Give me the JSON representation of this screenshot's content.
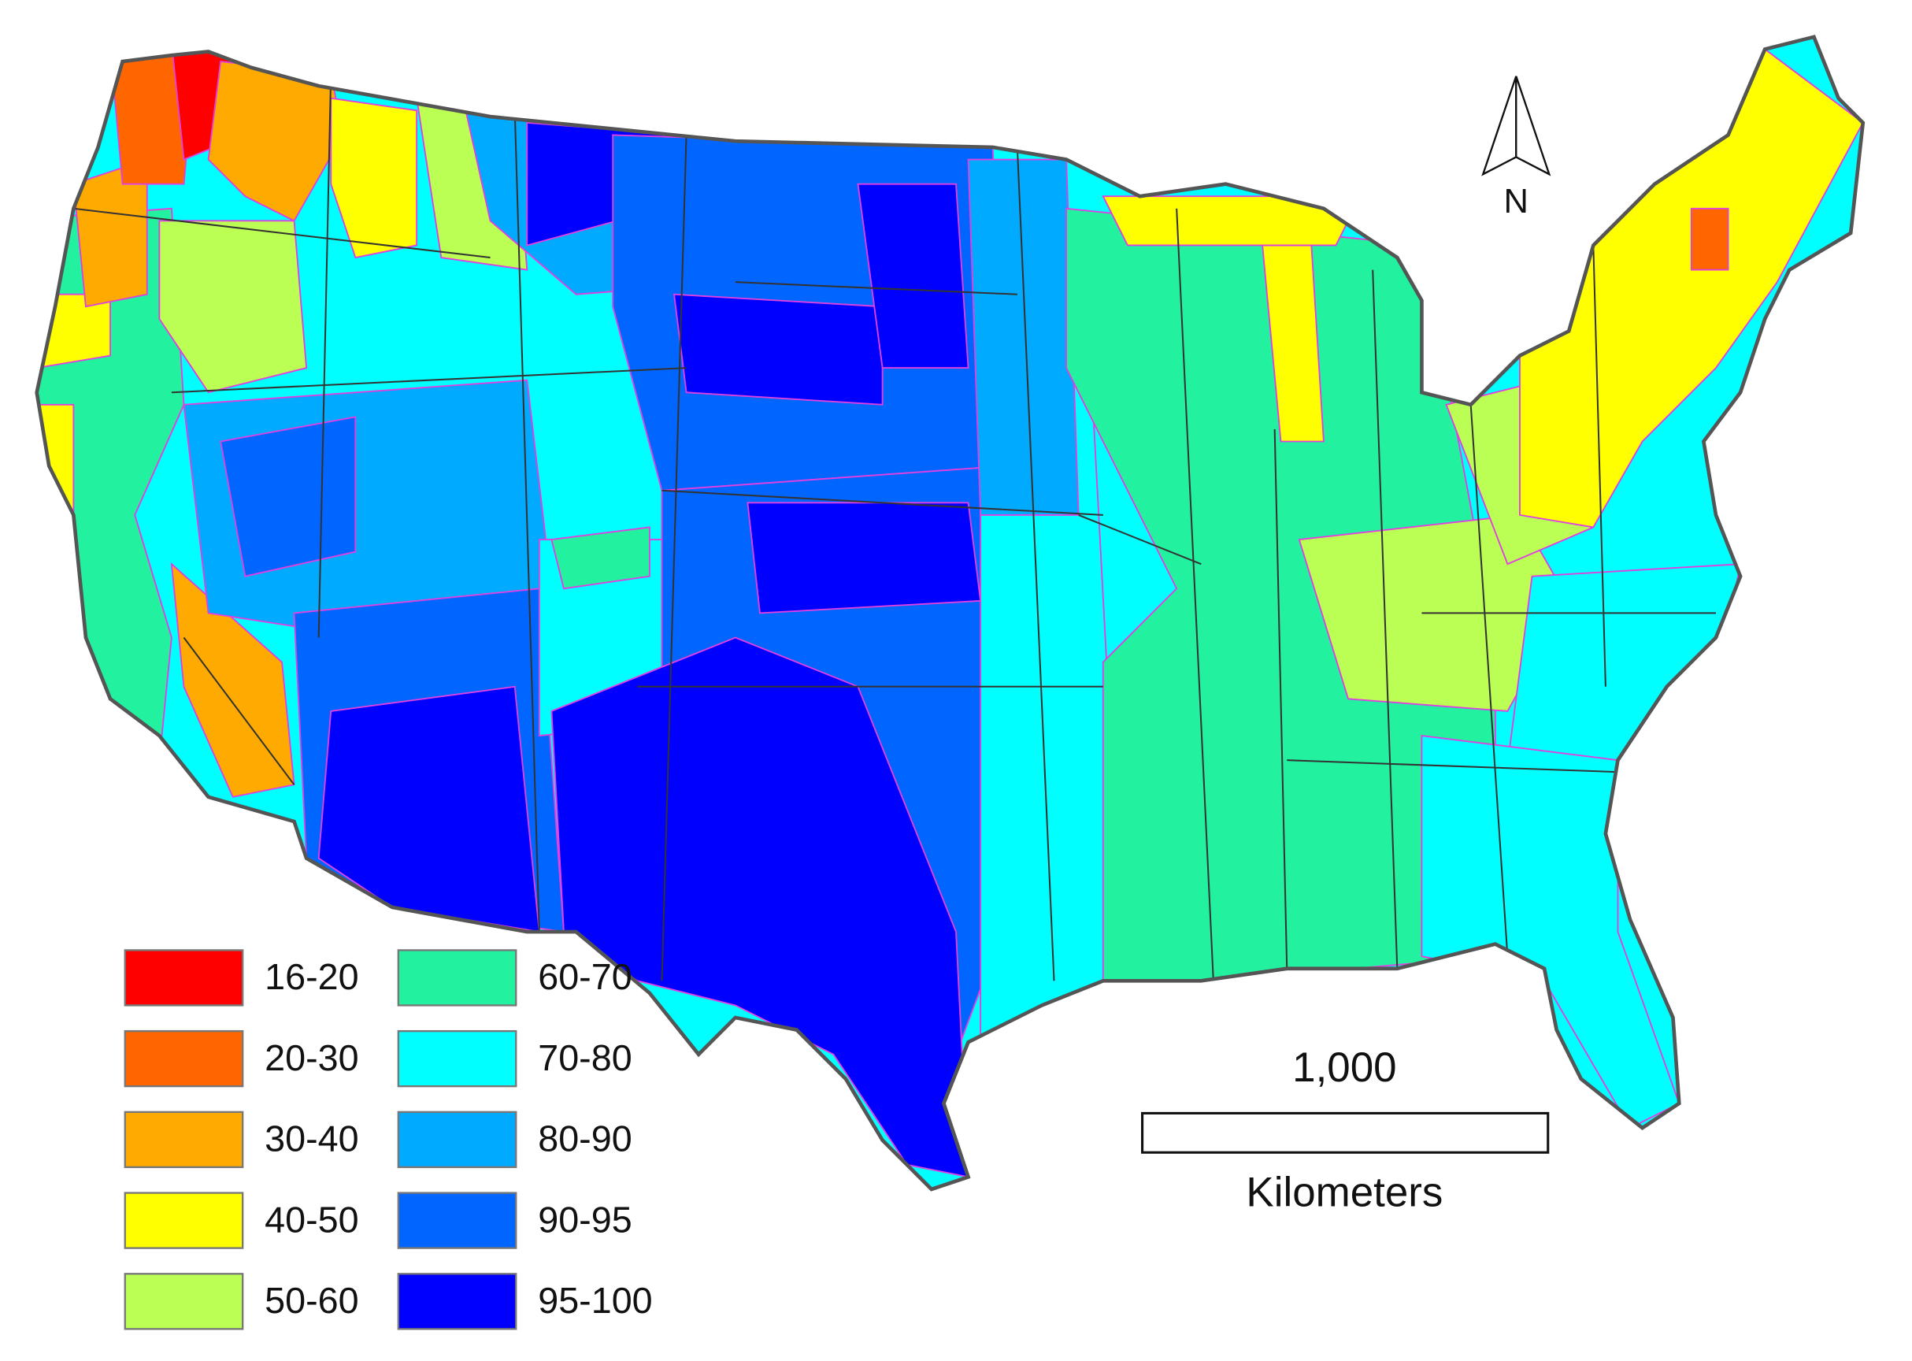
{
  "legend": {
    "items": [
      {
        "label": "16-20",
        "color": "#ff0000"
      },
      {
        "label": "20-30",
        "color": "#ff6600"
      },
      {
        "label": "30-40",
        "color": "#ffaa00"
      },
      {
        "label": "40-50",
        "color": "#ffff00"
      },
      {
        "label": "50-60",
        "color": "#bbff55"
      },
      {
        "label": "60-70",
        "color": "#22f2a0"
      },
      {
        "label": "70-80",
        "color": "#00ffff"
      },
      {
        "label": "80-90",
        "color": "#00aaff"
      },
      {
        "label": "90-95",
        "color": "#0066ff"
      },
      {
        "label": "95-100",
        "color": "#0000ff"
      }
    ]
  },
  "north_arrow": {
    "label": "N"
  },
  "scale_bar": {
    "value_label": "1,000",
    "unit": "Kilometers"
  }
}
